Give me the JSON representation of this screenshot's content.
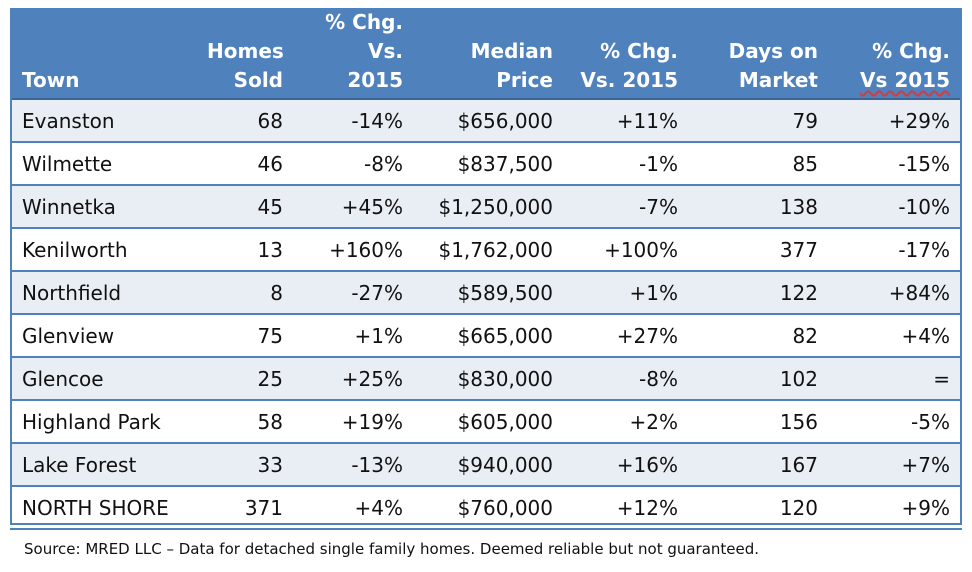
{
  "table": {
    "headers": [
      {
        "line1": "",
        "line2": "Town"
      },
      {
        "line1": "Homes",
        "line2": "Sold"
      },
      {
        "line1": "% Chg.",
        "line2": "Vs. 2015"
      },
      {
        "line1": "Median",
        "line2": "Price"
      },
      {
        "line1": "% Chg.",
        "line2": "Vs. 2015"
      },
      {
        "line1": "Days on",
        "line2": "Market"
      },
      {
        "line1": "% Chg.",
        "line2": "Vs 2015"
      }
    ],
    "rows": [
      [
        "Evanston",
        "68",
        "-14%",
        "$656,000",
        "+11%",
        "79",
        "+29%"
      ],
      [
        "Wilmette",
        "46",
        "-8%",
        "$837,500",
        "-1%",
        "85",
        "-15%"
      ],
      [
        "Winnetka",
        "45",
        "+45%",
        "$1,250,000",
        "-7%",
        "138",
        "-10%"
      ],
      [
        "Kenilworth",
        "13",
        "+160%",
        "$1,762,000",
        "+100%",
        "377",
        "-17%"
      ],
      [
        "Northfield",
        "8",
        "-27%",
        "$589,500",
        "+1%",
        "122",
        "+84%"
      ],
      [
        "Glenview",
        "75",
        "+1%",
        "$665,000",
        "+27%",
        "82",
        "+4%"
      ],
      [
        "Glencoe",
        "25",
        "+25%",
        "$830,000",
        "-8%",
        "102",
        "="
      ],
      [
        "Highland Park",
        "58",
        "+19%",
        "$605,000",
        "+2%",
        "156",
        "-5%"
      ],
      [
        "Lake Forest",
        "33",
        "-13%",
        "$940,000",
        "+16%",
        "167",
        "+7%"
      ],
      [
        "NORTH SHORE",
        "371",
        "+4%",
        "$760,000",
        "+12%",
        "120",
        "+9%"
      ]
    ]
  },
  "footer": {
    "source": "Source: MRED LLC – Data for detached single family homes. Deemed reliable but not guaranteed."
  },
  "colors": {
    "header_bg": "#4f81bd",
    "band_bg": "#e9edf4",
    "border": "#4f81bd"
  }
}
